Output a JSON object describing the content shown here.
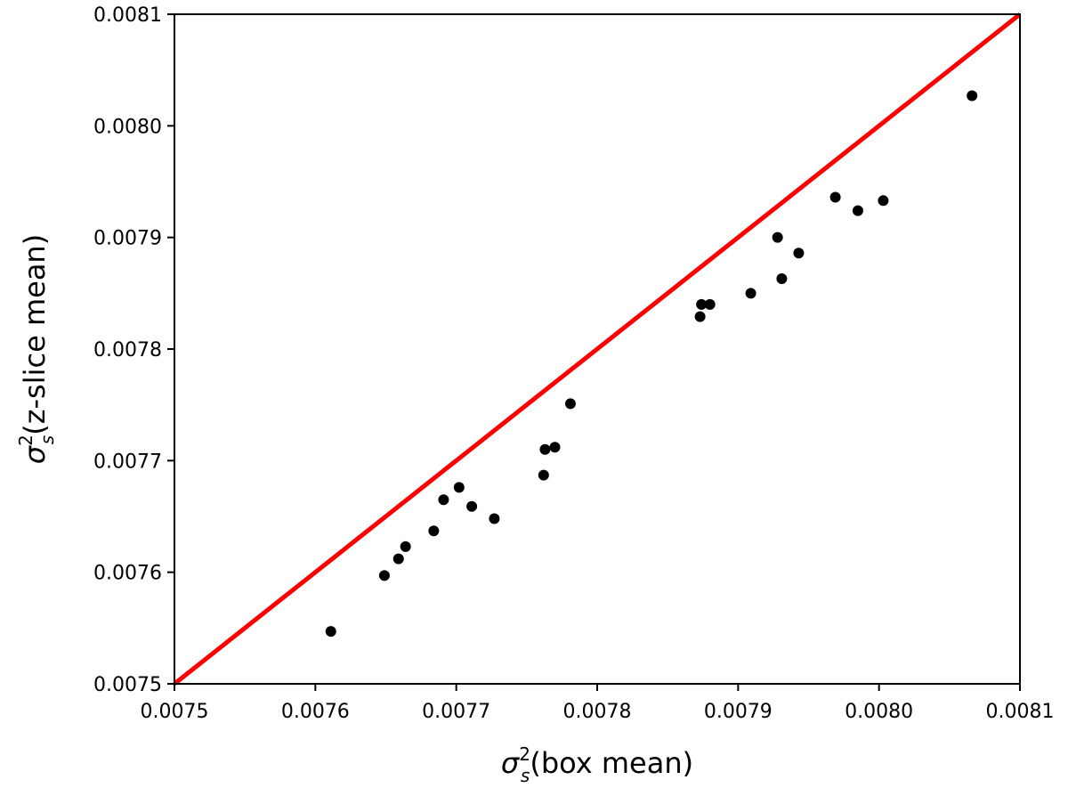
{
  "chart_data": {
    "type": "scatter",
    "title": "",
    "xlabel": {
      "symbol": "σ",
      "sup": "2",
      "sub": "s",
      "text": "(box mean)"
    },
    "ylabel": {
      "symbol": "σ",
      "sup": "2",
      "sub": "s",
      "text": "(z-slice mean)"
    },
    "xlim": [
      0.0075,
      0.0081
    ],
    "ylim": [
      0.0075,
      0.0081
    ],
    "xticks": [
      "0.0075",
      "0.0076",
      "0.0077",
      "0.0078",
      "0.0079",
      "0.0080",
      "0.0081"
    ],
    "yticks": [
      "0.0075",
      "0.0076",
      "0.0077",
      "0.0078",
      "0.0079",
      "0.0080",
      "0.0081"
    ],
    "grid": false,
    "reference_line": {
      "x": [
        0.0075,
        0.0081
      ],
      "y": [
        0.0075,
        0.0081
      ],
      "color": "#ff0000"
    },
    "series": [
      {
        "color": "#000000",
        "points": [
          [
            0.007611,
            0.007547
          ],
          [
            0.007649,
            0.007597
          ],
          [
            0.007659,
            0.007612
          ],
          [
            0.007664,
            0.007623
          ],
          [
            0.007684,
            0.007637
          ],
          [
            0.007691,
            0.007665
          ],
          [
            0.007702,
            0.007676
          ],
          [
            0.007711,
            0.007659
          ],
          [
            0.007727,
            0.007648
          ],
          [
            0.007762,
            0.007687
          ],
          [
            0.007763,
            0.00771
          ],
          [
            0.00777,
            0.007712
          ],
          [
            0.007781,
            0.007751
          ],
          [
            0.007873,
            0.007829
          ],
          [
            0.007874,
            0.00784
          ],
          [
            0.00788,
            0.00784
          ],
          [
            0.007909,
            0.00785
          ],
          [
            0.007928,
            0.0079
          ],
          [
            0.007931,
            0.007863
          ],
          [
            0.007943,
            0.007886
          ],
          [
            0.007969,
            0.007936
          ],
          [
            0.007985,
            0.007924
          ],
          [
            0.008003,
            0.007933
          ],
          [
            0.008066,
            0.008027
          ]
        ]
      }
    ]
  }
}
